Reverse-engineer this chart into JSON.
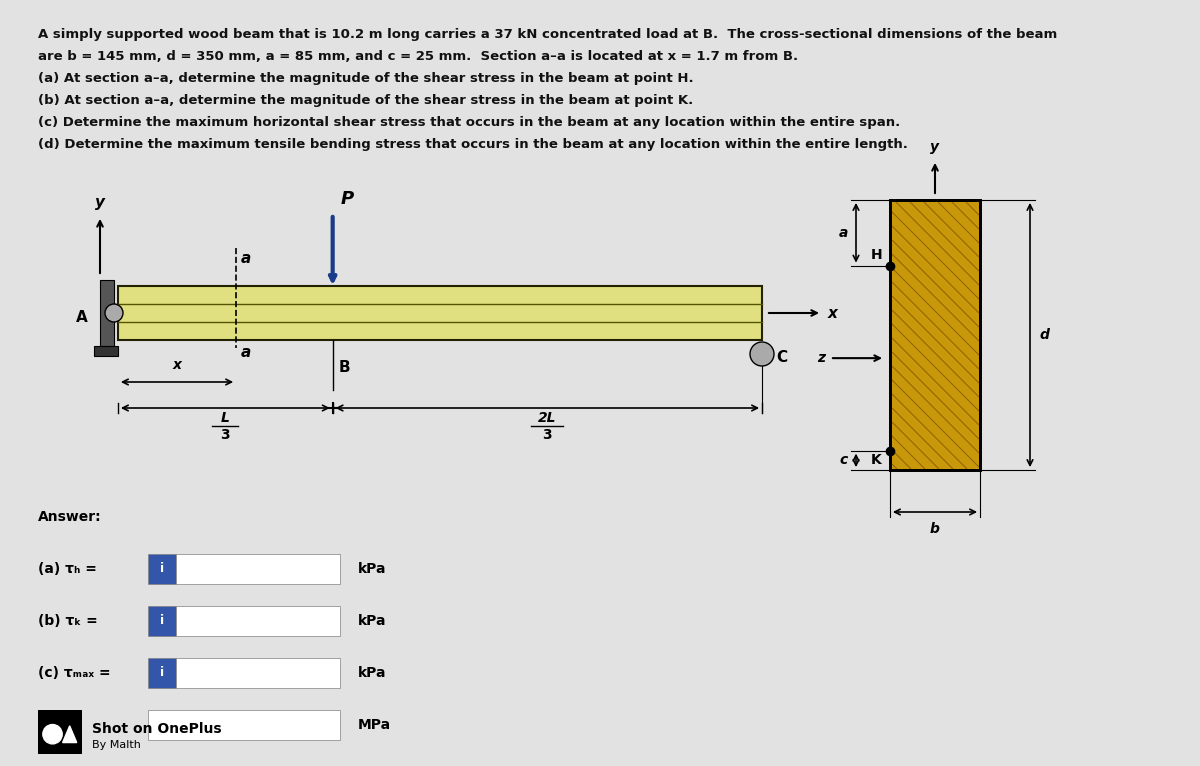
{
  "bg_color": "#c8c8c8",
  "page_color": "#e8e8e8",
  "title_lines": [
    "A simply supported wood beam that is 10.2 m long carries a 37 kN concentrated load at B.  The cross-sectional dimensions of the beam",
    "are b = 145 mm, d = 350 mm, a = 85 mm, and c = 25 mm.  Section a–a is located at x = 1.7 m from B.",
    "(a) At section a–a, determine the magnitude of the shear stress in the beam at point H.",
    "(b) At section a–a, determine the magnitude of the shear stress in the beam at point K.",
    "(c) Determine the maximum horizontal shear stress that occurs in the beam at any location within the entire span.",
    "(d) Determine the maximum tensile bending stress that occurs in the beam at any location within the entire length."
  ],
  "beam_fill": "#e0e080",
  "beam_edge": "#222200",
  "beam_line_color": "#555500",
  "wood_fill": "#c8980a",
  "wood_grain": "#8a6000",
  "support_color": "#444444",
  "arrow_blue": "#1a3a8a",
  "answer_labels": [
    "(a) τₕ =",
    "(b) τₖ =",
    "(c) τₘₐₓ ="
  ],
  "answer_units": [
    "kPa",
    "kPa",
    "kPa"
  ],
  "box_blue": "#3355aa",
  "text_color": "#111111",
  "dim_color": "#111111"
}
